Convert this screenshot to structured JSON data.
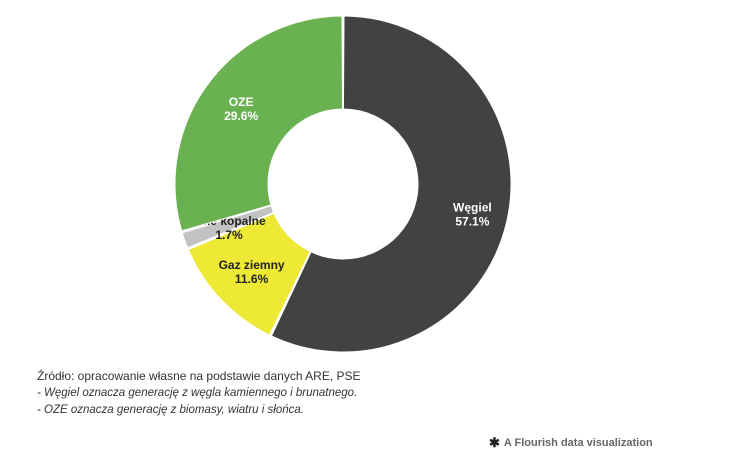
{
  "chart_data": {
    "type": "pie",
    "donut": true,
    "slices": [
      {
        "label": "Węgiel",
        "value": 57.1,
        "value_text": "57.1%",
        "color": "#424242",
        "label_color": "#ffffff"
      },
      {
        "label": "Gaz ziemny",
        "value": 11.6,
        "value_text": "11.6%",
        "color": "#ede935",
        "label_color": "#222222"
      },
      {
        "label": "Inne kopalne",
        "value": 1.7,
        "value_text": "1.7%",
        "color": "#c2c2c2",
        "label_color": "#222222"
      },
      {
        "label": "OZE",
        "value": 29.6,
        "value_text": "29.6%",
        "color": "#6ab152",
        "label_color": "#ffffff"
      }
    ],
    "start": "top",
    "direction": "clockwise"
  },
  "footer": {
    "source": "Źródło: opracowanie własne na podstawie danych ARE, PSE",
    "note1": "- Węgiel oznacza generację z węgla kamiennego i brunatnego.",
    "note2": "- OZE oznacza generację z biomasy, wiatru i słońca."
  },
  "credit": {
    "icon": "flourish-asterisk-icon",
    "text": "A Flourish data visualization"
  }
}
